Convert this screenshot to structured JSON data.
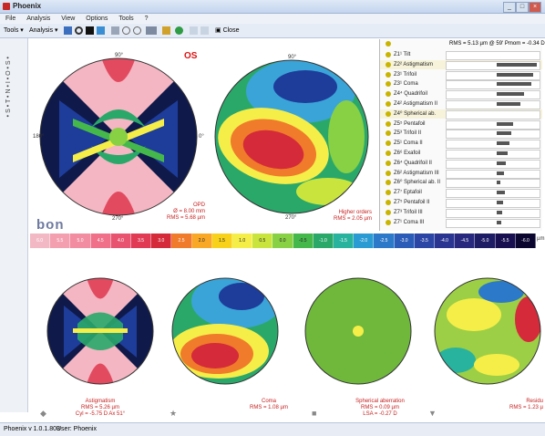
{
  "window": {
    "title": "Phoenix",
    "min": "_",
    "max": "□",
    "close": "×"
  },
  "menu": [
    "File",
    "Analysis",
    "View",
    "Options",
    "Tools",
    "?"
  ],
  "toolbar": {
    "tools_label": "Tools",
    "analysis_label": "Analysis",
    "close_label": "Close"
  },
  "left_vertical_text": "• S • T • N • I • O • S •",
  "maps": {
    "os_label": "OS",
    "opd": {
      "line1": "OPD",
      "line2": "Ø = 8.00 mm",
      "line3": "RMS = 5.68 µm"
    },
    "higher": {
      "line1": "Higher orders",
      "line2": "RMS = 2.05 µm"
    },
    "astig": {
      "line1": "Astigmatism",
      "line2": "RMS = 5.26 µm",
      "line3": "Cyl = -5.75 D Ax 51°"
    },
    "coma": {
      "line1": "Coma",
      "line2": "RMS = 1.08 µm"
    },
    "spherical": {
      "line1": "Spherical aberration",
      "line2": "RMS = 0.09 µm",
      "line3": "LSA = -0.27 D"
    },
    "residual": {
      "line1": "Residu",
      "line2": "RMS = 1.23 µ"
    }
  },
  "angles": [
    "90°",
    "120°",
    "150°",
    "180°",
    "210°",
    "240°",
    "270°",
    "300°",
    "330°",
    "0°",
    "30°",
    "60°"
  ],
  "logo": "bon",
  "scale": {
    "labels": [
      "6.0",
      "5.5",
      "5.0",
      "4.5",
      "4.0",
      "3.5",
      "3.0",
      "2.5",
      "2.0",
      "1.5",
      "1.0",
      "0.5",
      "0.0",
      "-0.5",
      "-1.0",
      "-1.5",
      "-2.0",
      "-2.5",
      "-3.0",
      "-3.5",
      "-4.0",
      "-4.5",
      "-5.0",
      "-5.5",
      "-6.0"
    ],
    "colors": [
      "#f2b9c4",
      "#f49fb0",
      "#f28ca0",
      "#ef7088",
      "#e85470",
      "#e03a55",
      "#d42a3a",
      "#f07b2a",
      "#f9a825",
      "#f7d11a",
      "#f5ee48",
      "#c9e53d",
      "#88d044",
      "#45b84b",
      "#2aa86a",
      "#28b39e",
      "#2a9bd3",
      "#2c79c9",
      "#2b5cb8",
      "#2c46a5",
      "#2a3592",
      "#27287e",
      "#1f1c66",
      "#170f4f",
      "#0a0630"
    ],
    "unit": "µm"
  },
  "zernike": {
    "header": "RMS = 5.13 µm @ 59' Pmom = -0.34 Dp",
    "rows": [
      {
        "label": "Z1¹ Tilt",
        "bar": 0
      },
      {
        "label": "Z2² Astigmatism",
        "bar": 44
      },
      {
        "label": "Z3¹ Trifoil",
        "bar": 40
      },
      {
        "label": "Z3¹ Coma",
        "bar": 38
      },
      {
        "label": "Z4⁴ Quadrifoil",
        "bar": 30
      },
      {
        "label": "Z4² Astigmatism II",
        "bar": 26
      },
      {
        "label": "Z4⁰ Spherical ab.",
        "bar": 0
      },
      {
        "label": "Z5⁵ Pentafoil",
        "bar": 18
      },
      {
        "label": "Z5³ Trifoil II",
        "bar": 16
      },
      {
        "label": "Z5¹ Coma II",
        "bar": 14
      },
      {
        "label": "Z6⁶ Exafoil",
        "bar": 12
      },
      {
        "label": "Z6⁴ Quadrifoil II",
        "bar": 10
      },
      {
        "label": "Z6² Astigmatism III",
        "bar": 8
      },
      {
        "label": "Z6⁰ Spherical ab. II",
        "bar": 4
      },
      {
        "label": "Z7⁷ Eptafoil",
        "bar": 9
      },
      {
        "label": "Z7⁵ Pentafoil II",
        "bar": 7
      },
      {
        "label": "Z7³ Trifoil III",
        "bar": 6
      },
      {
        "label": "Z7¹ Coma III",
        "bar": 5
      }
    ]
  },
  "status": {
    "version": "Phoenix v 1.0.1.803",
    "user": "User: Phoenix"
  }
}
